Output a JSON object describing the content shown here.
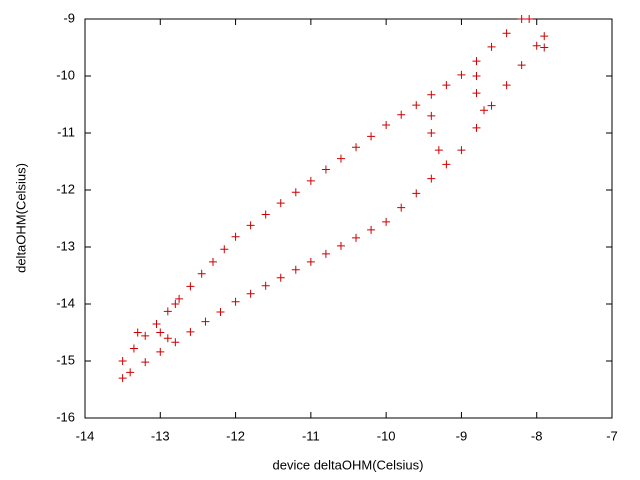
{
  "chart_data": {
    "type": "scatter",
    "xlabel": "device deltaOHM(Celsius)",
    "ylabel": "deltaOHM(Celsius)",
    "color": "#cc0000",
    "xlim": [
      -14,
      -7
    ],
    "ylim": [
      -16,
      -9
    ],
    "xticks": [
      -14,
      -13,
      -12,
      -11,
      -10,
      -9,
      -8,
      -7
    ],
    "yticks": [
      -16,
      -15,
      -14,
      -13,
      -12,
      -11,
      -10,
      -9
    ],
    "x": [
      -13.5,
      -13.35,
      -13.2,
      -13.05,
      -12.9,
      -12.75,
      -12.6,
      -12.45,
      -12.3,
      -12.15,
      -12.0,
      -11.8,
      -11.6,
      -11.4,
      -11.2,
      -11.0,
      -10.8,
      -10.6,
      -10.4,
      -10.2,
      -10.0,
      -9.8,
      -9.6,
      -9.4,
      -9.2,
      -9.0,
      -8.8,
      -8.6,
      -8.4,
      -8.2,
      -13.4,
      -13.2,
      -13.0,
      -12.8,
      -12.6,
      -12.4,
      -12.2,
      -12.0,
      -11.8,
      -11.6,
      -11.4,
      -11.2,
      -11.0,
      -10.8,
      -10.6,
      -10.4,
      -10.2,
      -10.0,
      -9.8,
      -9.6,
      -9.4,
      -9.2,
      -9.0,
      -8.8,
      -8.6,
      -8.4,
      -8.2,
      -8.0,
      -7.9,
      -9.4,
      -9.4,
      -9.3,
      -8.8,
      -8.8,
      -8.7,
      -13.3,
      -13.0,
      -12.8,
      -12.9,
      -13.5,
      -7.9,
      -8.1
    ],
    "y": [
      -15.0,
      -14.78,
      -14.56,
      -14.35,
      -14.13,
      -13.91,
      -13.69,
      -13.47,
      -13.26,
      -13.04,
      -12.82,
      -12.62,
      -12.43,
      -12.23,
      -12.04,
      -11.84,
      -11.64,
      -11.45,
      -11.25,
      -11.06,
      -10.86,
      -10.68,
      -10.51,
      -10.33,
      -10.16,
      -9.98,
      -9.74,
      -9.49,
      -9.25,
      -9.0,
      -15.2,
      -15.02,
      -14.84,
      -14.67,
      -14.49,
      -14.31,
      -14.14,
      -13.96,
      -13.82,
      -13.68,
      -13.54,
      -13.4,
      -13.26,
      -13.12,
      -12.98,
      -12.84,
      -12.7,
      -12.56,
      -12.31,
      -12.06,
      -11.8,
      -11.55,
      -11.3,
      -10.91,
      -10.52,
      -10.16,
      -9.81,
      -9.47,
      -9.3,
      -10.7,
      -11.0,
      -11.3,
      -10.0,
      -10.3,
      -10.6,
      -14.5,
      -14.5,
      -14.0,
      -14.6,
      -15.3,
      -9.5,
      -9.0
    ]
  }
}
